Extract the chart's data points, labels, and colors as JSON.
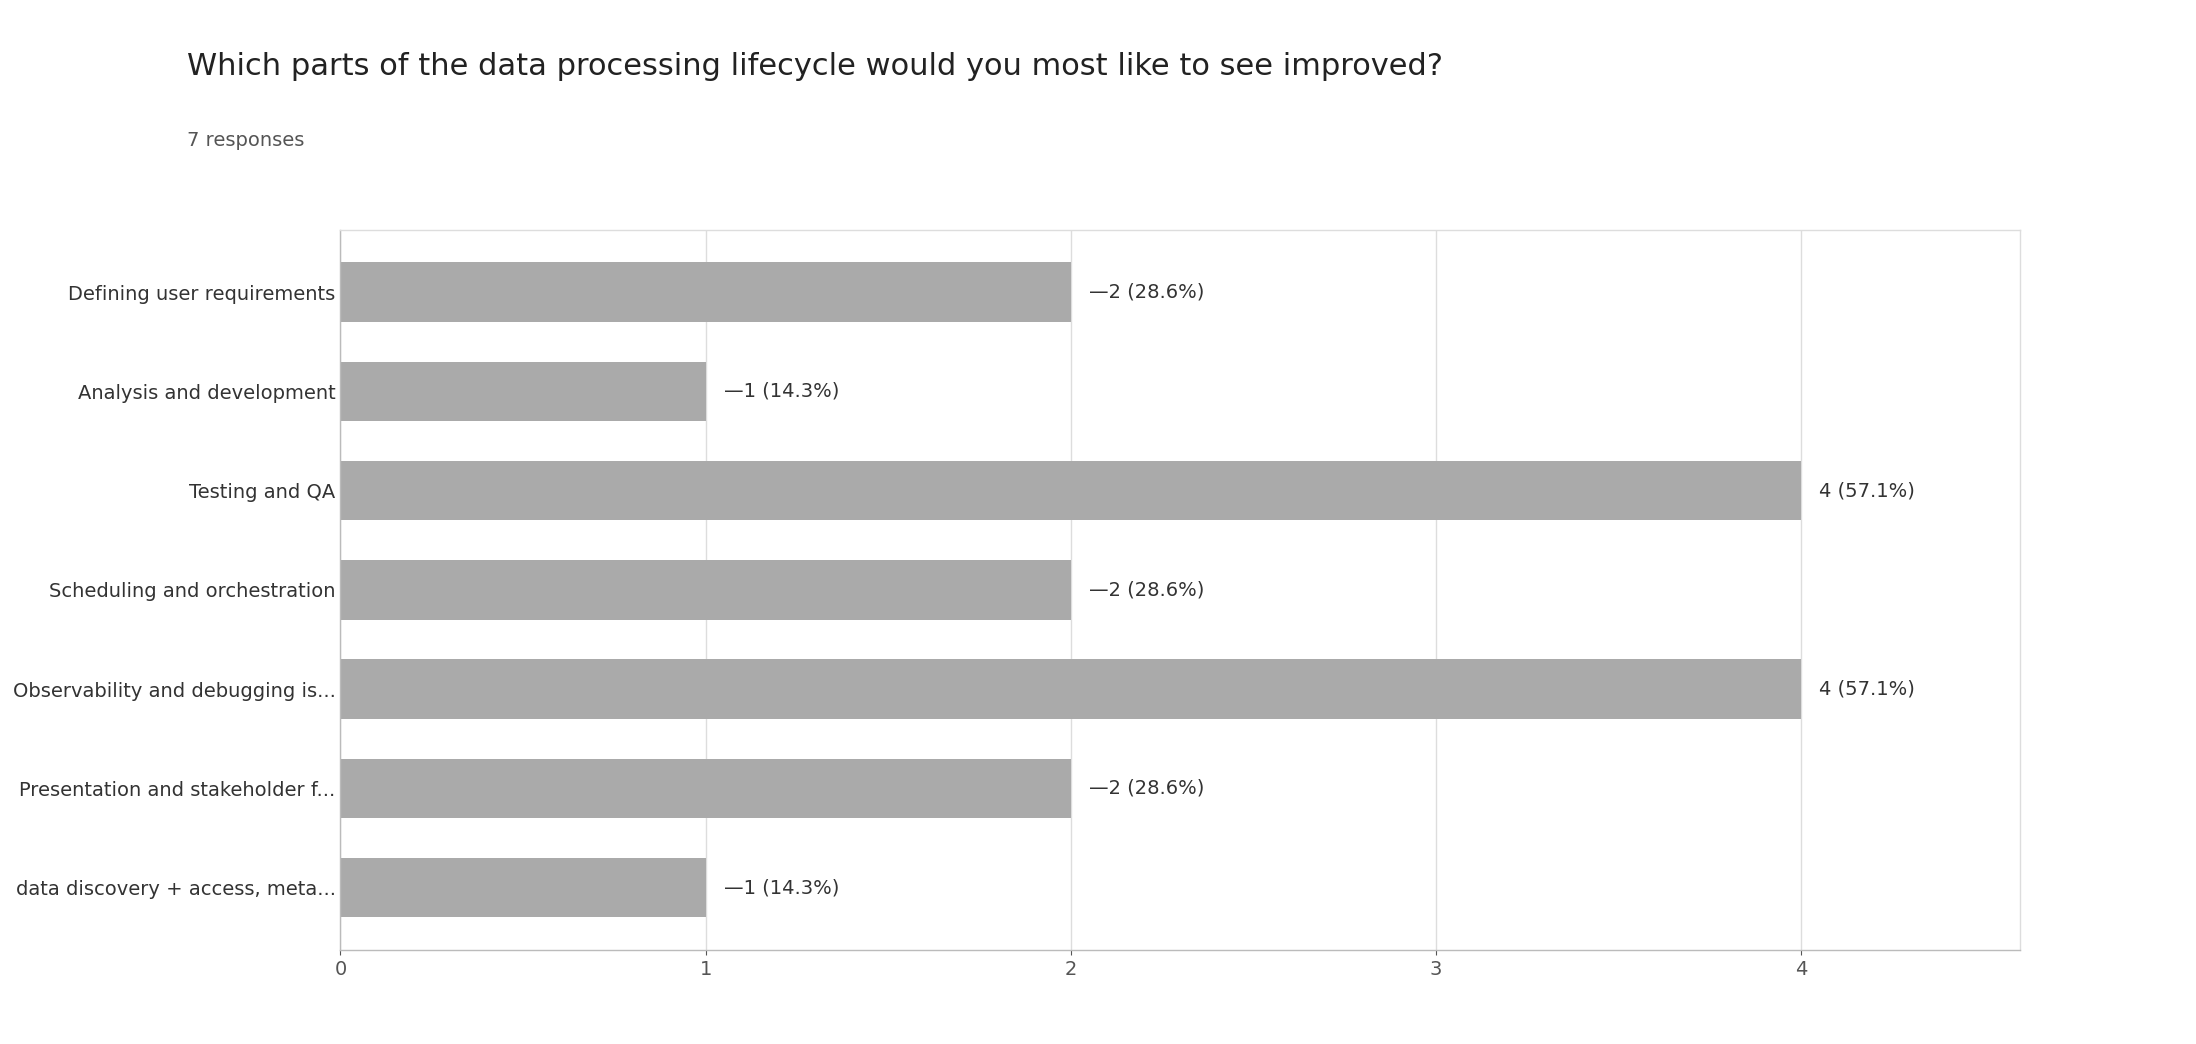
{
  "title": "Which parts of the data processing lifecycle would you most like to see improved?",
  "subtitle": "7 responses",
  "categories": [
    "Defining user requirements",
    "Analysis and development",
    "Testing and QA",
    "Scheduling and orchestration",
    "Observability and debugging is...",
    "Presentation and stakeholder f...",
    "data discovery + access, meta..."
  ],
  "values": [
    2,
    1,
    4,
    2,
    4,
    2,
    1
  ],
  "labels": [
    "—2 (28.6%)",
    "—1 (14.3%)",
    "4 (57.1%)",
    "—2 (28.6%)",
    "4 (57.1%)",
    "—2 (28.6%)",
    "—1 (14.3%)"
  ],
  "bar_color": "#aaaaaa",
  "background_color": "#ffffff",
  "plot_background": "#ffffff",
  "title_fontsize": 22,
  "subtitle_fontsize": 14,
  "label_fontsize": 14,
  "tick_fontsize": 14,
  "xlim": [
    0,
    4.6
  ],
  "xticks": [
    0,
    1,
    2,
    3,
    4
  ]
}
